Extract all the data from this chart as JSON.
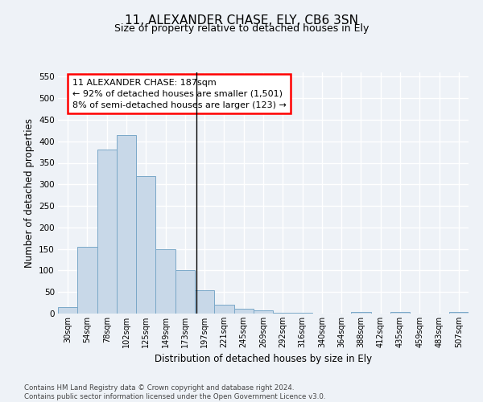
{
  "title": "11, ALEXANDER CHASE, ELY, CB6 3SN",
  "subtitle": "Size of property relative to detached houses in Ely",
  "xlabel": "Distribution of detached houses by size in Ely",
  "ylabel": "Number of detached properties",
  "footer_line1": "Contains HM Land Registry data © Crown copyright and database right 2024.",
  "footer_line2": "Contains public sector information licensed under the Open Government Licence v3.0.",
  "bin_labels": [
    "30sqm",
    "54sqm",
    "78sqm",
    "102sqm",
    "125sqm",
    "149sqm",
    "173sqm",
    "197sqm",
    "221sqm",
    "245sqm",
    "269sqm",
    "292sqm",
    "316sqm",
    "340sqm",
    "364sqm",
    "388sqm",
    "412sqm",
    "435sqm",
    "459sqm",
    "483sqm",
    "507sqm"
  ],
  "bar_values": [
    15,
    155,
    380,
    415,
    320,
    150,
    100,
    55,
    20,
    12,
    7,
    2,
    1,
    0,
    0,
    3,
    0,
    3,
    0,
    0,
    3
  ],
  "bar_color": "#c8d8e8",
  "bar_edgecolor": "#7aa8c8",
  "annotation_box_text": "11 ALEXANDER CHASE: 187sqm\n← 92% of detached houses are smaller (1,501)\n8% of semi-detached houses are larger (123) →",
  "ylim": [
    0,
    560
  ],
  "yticks": [
    0,
    50,
    100,
    150,
    200,
    250,
    300,
    350,
    400,
    450,
    500,
    550
  ],
  "bg_color": "#eef2f7",
  "grid_color": "#ffffff",
  "vline_color": "#000000"
}
